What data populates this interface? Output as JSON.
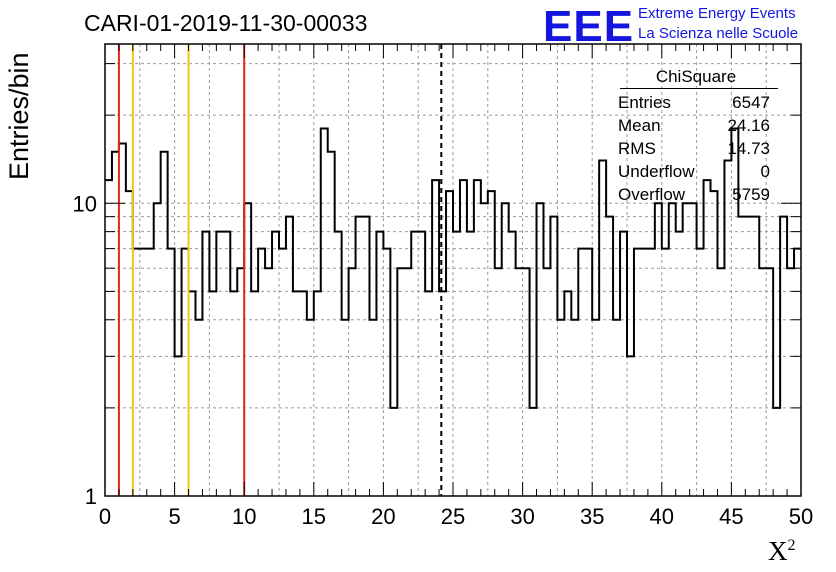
{
  "header": {
    "title": "CARI-01-2019-11-30-00033",
    "logo": "EEE",
    "org_line1": "Extreme Energy Events",
    "org_line2": "La Scienza nelle Scuole"
  },
  "stats_box": {
    "title": "ChiSquare",
    "rows": [
      {
        "label": "Entries",
        "value": "6547"
      },
      {
        "label": "Mean",
        "value": "24.16"
      },
      {
        "label": "RMS",
        "value": "14.73"
      },
      {
        "label": "Underflow",
        "value": "0"
      },
      {
        "label": "Overflow",
        "value": "5759"
      }
    ]
  },
  "colors": {
    "red_line": "#e8231a",
    "yellow_line": "#f5c518",
    "histogram": "#000000",
    "grid": "#9b9b9b",
    "logo_blue": "#1515e0"
  },
  "chart_data": {
    "type": "histogram",
    "title": "CARI-01-2019-11-30-00033",
    "xlabel": "X",
    "xlabel_superscript": "2",
    "ylabel": "Entries/bin",
    "xlim": [
      0,
      50
    ],
    "ylim": [
      1,
      35
    ],
    "yscale": "log",
    "grid": true,
    "x_ticks": [
      0,
      5,
      10,
      15,
      20,
      25,
      30,
      35,
      40,
      45,
      50
    ],
    "y_ticks": [
      1,
      10
    ],
    "bin_width": 0.5,
    "counts": [
      12,
      15,
      16,
      11,
      7,
      7,
      7,
      10,
      15,
      7,
      3,
      7,
      5,
      4,
      8,
      5,
      8,
      8,
      5,
      6,
      10,
      5,
      7,
      6,
      8,
      7,
      9,
      5,
      5,
      4,
      5,
      18,
      15,
      8,
      4,
      6,
      9,
      9,
      4,
      8,
      7,
      2,
      6,
      6,
      8,
      8,
      5,
      12,
      5,
      11,
      8,
      12,
      8,
      12,
      10,
      11,
      6,
      10,
      8,
      6,
      6,
      2,
      10,
      6,
      9,
      4,
      5,
      4,
      7,
      7,
      4,
      14,
      9,
      4,
      8,
      3,
      7,
      7,
      7,
      10,
      7,
      10,
      8,
      10,
      10,
      7,
      12,
      11,
      6,
      14,
      18,
      9,
      9,
      9,
      6,
      6,
      2,
      9,
      6,
      7
    ],
    "vertical_lines": [
      {
        "x": 1,
        "color": "red",
        "style": "solid"
      },
      {
        "x": 2,
        "color": "yellow",
        "style": "solid"
      },
      {
        "x": 6,
        "color": "yellow",
        "style": "solid"
      },
      {
        "x": 10,
        "color": "red",
        "style": "solid"
      },
      {
        "x": 24.16,
        "color": "black",
        "style": "dashed"
      }
    ]
  }
}
